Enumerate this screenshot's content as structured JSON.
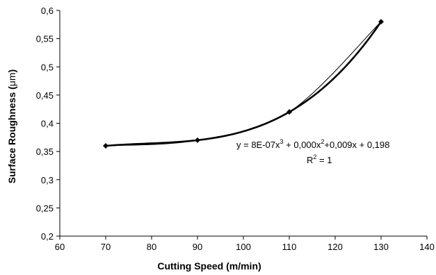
{
  "chart_data": {
    "type": "line",
    "xlabel": "Cutting Speed (m/min)",
    "ylabel_prefix": "Surface Roughness (",
    "ylabel_unit": "μm",
    "ylabel_suffix": ")",
    "xlim": [
      60,
      140
    ],
    "ylim": [
      0.2,
      0.6
    ],
    "x_ticks": [
      "60",
      "70",
      "80",
      "90",
      "100",
      "110",
      "120",
      "130",
      "140"
    ],
    "y_ticks": [
      "0,2",
      "0,25",
      "0,3",
      "0,35",
      "0,4",
      "0,45",
      "0,5",
      "0,55",
      "0,6"
    ],
    "grid": false,
    "series": [
      {
        "x": [
          70,
          90,
          110,
          130
        ],
        "y": [
          0.36,
          0.37,
          0.42,
          0.58
        ],
        "marker": "diamond",
        "line_color": "#000000"
      }
    ],
    "trendline": {
      "type": "polynomial-3",
      "equation_text": {
        "p1": "y = 8E-07x",
        "sup1": "3",
        "p2": " + 0,000x",
        "sup2": "2",
        "p3": "+0,009x + 0,198"
      },
      "r2_text": {
        "prefix": "R",
        "sup": "2",
        "suffix": " = 1"
      }
    }
  }
}
